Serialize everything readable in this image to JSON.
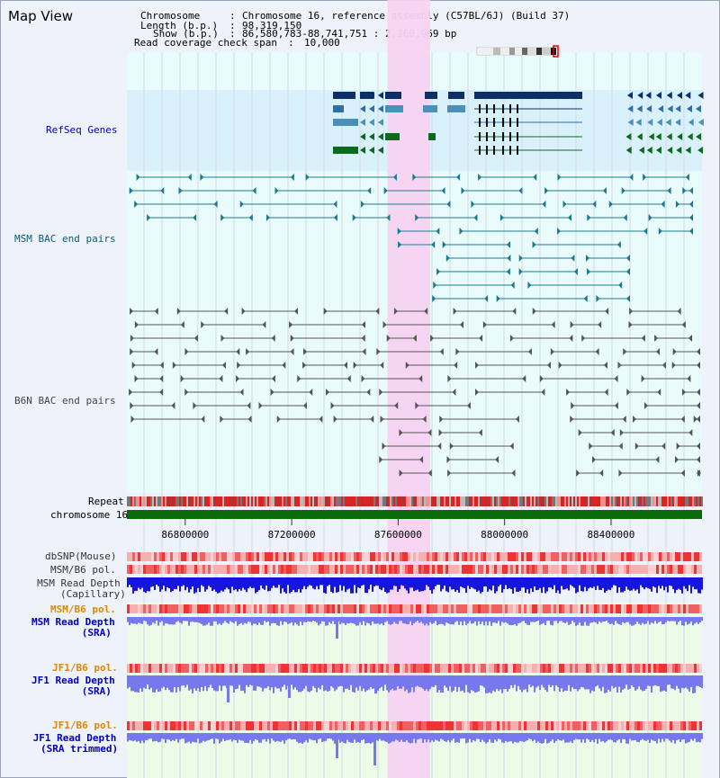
{
  "title": "Map View",
  "info": {
    "chromosome_key": "Chromosome",
    "chromosome_value": "Chromosome 16, reference assembly (C57BL/6J) (Build 37)",
    "length_key": "Length (b.p.)",
    "length_value": "98,319,150",
    "show_key": "Show (b.p.)",
    "show_value": "86,580,783-88,741,751 : 2,160,969 bp",
    "coverage_key": "Read coverage check span",
    "coverage_value": "10,000"
  },
  "tracks": {
    "refseq": "RefSeq Genes",
    "msm_bac": "MSM BAC end pairs",
    "b6n_bac": "B6N BAC end pairs",
    "repeat": "Repeat",
    "chromosome": "chromosome 16",
    "dbsnp": "dbSNP(Mouse)",
    "msm_b6_pol_1": "MSM/B6 pol.",
    "msm_depth_cap_1": "MSM Read Depth",
    "msm_depth_cap_2": "(Capillary)",
    "msm_b6_pol_2": "MSM/B6 pol.",
    "msm_depth_sra_1": "MSM Read Depth",
    "msm_depth_sra_2": "(SRA)",
    "jf1_b6_pol_1": "JF1/B6 pol.",
    "jf1_depth_sra_1": "JF1 Read Depth",
    "jf1_depth_sra_2": "(SRA)",
    "jf1_b6_pol_2": "JF1/B6 pol.",
    "jf1_depth_trim_1": "JF1 Read Depth",
    "jf1_depth_trim_2": "(SRA trimmed)"
  },
  "axis": {
    "ticks": [
      {
        "label": "86800000",
        "pos": 86800000
      },
      {
        "label": "87200000",
        "pos": 87200000
      },
      {
        "label": "87600000",
        "pos": 87600000
      },
      {
        "label": "88000000",
        "pos": 88000000
      },
      {
        "label": "88400000",
        "pos": 88400000
      }
    ],
    "range": [
      86580783,
      88741751
    ]
  },
  "highlight": {
    "start": 87560000,
    "end": 87720000
  },
  "colors": {
    "refseq_dark": "#0b2f66",
    "refseq_mid": "#2f6fa3",
    "refseq_light": "#4a90b8",
    "refseq_green": "#0b6b1a",
    "msm_bac": "#1c7a8f",
    "b6n_bac": "#555555",
    "highlight": "#f7d3f2",
    "chrom": "#0a6a0a",
    "depth_dark": "#1515dd",
    "depth_light": "#7777ee",
    "label_blue": "#0000bb",
    "label_orange": "#dd8800"
  }
}
